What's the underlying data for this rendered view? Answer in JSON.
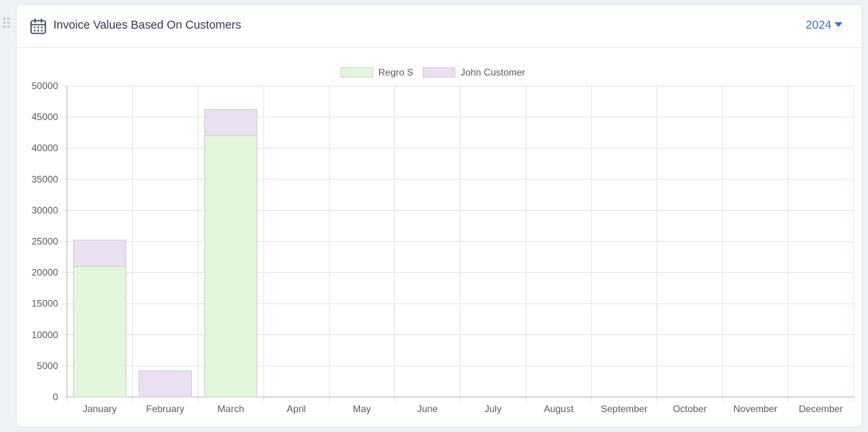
{
  "card": {
    "title": "Invoice Values Based On Customers",
    "year": "2024"
  },
  "icons": {
    "header": "calendar-icon",
    "year_caret": "caret-down-icon",
    "drag": "drag-handle-icon"
  },
  "colors": {
    "accent": "#3b6fd8",
    "regro_fill": "#e2f7dc",
    "john_fill": "#ebe0f2",
    "bar_border": "#cfcfcf"
  },
  "chart_data": {
    "type": "bar",
    "stacked": true,
    "categories": [
      "January",
      "February",
      "March",
      "April",
      "May",
      "June",
      "July",
      "August",
      "September",
      "October",
      "November",
      "December"
    ],
    "series": [
      {
        "name": "Regro S",
        "values": [
          21000,
          0,
          42000,
          0,
          0,
          0,
          0,
          0,
          0,
          0,
          0,
          0
        ]
      },
      {
        "name": "John Customer",
        "values": [
          4200,
          4200,
          4200,
          0,
          0,
          0,
          0,
          0,
          0,
          0,
          0,
          0
        ]
      }
    ],
    "ylim": [
      0,
      50000
    ],
    "yticks": [
      0,
      5000,
      10000,
      15000,
      20000,
      25000,
      30000,
      35000,
      40000,
      45000,
      50000
    ],
    "legend_position": "top",
    "grid": true,
    "xlabel": "",
    "ylabel": ""
  }
}
